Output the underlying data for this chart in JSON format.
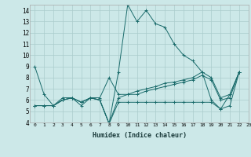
{
  "xlabel": "Humidex (Indice chaleur)",
  "bg_color": "#cce8e8",
  "grid_color": "#aacccc",
  "line_color": "#1a6b6b",
  "xlim": [
    -0.5,
    23
  ],
  "ylim": [
    4,
    14.5
  ],
  "xticks": [
    0,
    1,
    2,
    3,
    4,
    5,
    6,
    7,
    8,
    9,
    10,
    11,
    12,
    13,
    14,
    15,
    16,
    17,
    18,
    19,
    20,
    21,
    22,
    23
  ],
  "yticks": [
    4,
    5,
    6,
    7,
    8,
    9,
    10,
    11,
    12,
    13,
    14
  ],
  "series": [
    {
      "x": [
        0,
        1,
        2,
        3,
        4,
        5,
        6,
        7,
        8,
        9,
        10,
        11,
        12,
        13,
        14,
        15,
        16,
        17,
        18,
        19,
        20,
        21,
        22
      ],
      "y": [
        9.0,
        6.5,
        5.5,
        6.2,
        6.2,
        5.5,
        6.2,
        6.0,
        3.9,
        8.5,
        14.5,
        13.0,
        14.0,
        12.8,
        12.5,
        11.0,
        10.0,
        9.5,
        8.5,
        6.0,
        5.2,
        6.5,
        8.5
      ]
    },
    {
      "x": [
        0,
        1,
        2,
        3,
        4,
        5,
        6,
        7,
        8,
        9,
        10,
        11,
        12,
        13,
        14,
        15,
        16,
        17,
        18,
        19,
        20,
        21,
        22
      ],
      "y": [
        5.5,
        5.5,
        5.5,
        6.0,
        6.2,
        5.8,
        6.2,
        6.2,
        8.0,
        6.5,
        6.5,
        6.8,
        7.0,
        7.2,
        7.5,
        7.6,
        7.8,
        8.0,
        8.5,
        8.0,
        6.2,
        6.5,
        8.5
      ]
    },
    {
      "x": [
        0,
        1,
        2,
        3,
        4,
        5,
        6,
        7,
        8,
        9,
        10,
        11,
        12,
        13,
        14,
        15,
        16,
        17,
        18,
        19,
        20,
        21,
        22
      ],
      "y": [
        5.5,
        5.5,
        5.5,
        6.0,
        6.2,
        5.8,
        6.2,
        6.0,
        3.9,
        6.2,
        6.5,
        6.5,
        6.8,
        7.0,
        7.2,
        7.4,
        7.6,
        7.8,
        8.2,
        7.8,
        6.0,
        6.2,
        8.5
      ]
    },
    {
      "x": [
        0,
        1,
        2,
        3,
        4,
        5,
        6,
        7,
        8,
        9,
        10,
        11,
        12,
        13,
        14,
        15,
        16,
        17,
        18,
        19,
        20,
        21,
        22
      ],
      "y": [
        5.5,
        5.5,
        5.5,
        6.0,
        6.2,
        5.8,
        6.2,
        6.0,
        3.9,
        5.8,
        5.8,
        5.8,
        5.8,
        5.8,
        5.8,
        5.8,
        5.8,
        5.8,
        5.8,
        5.8,
        5.2,
        5.5,
        8.5
      ]
    }
  ]
}
